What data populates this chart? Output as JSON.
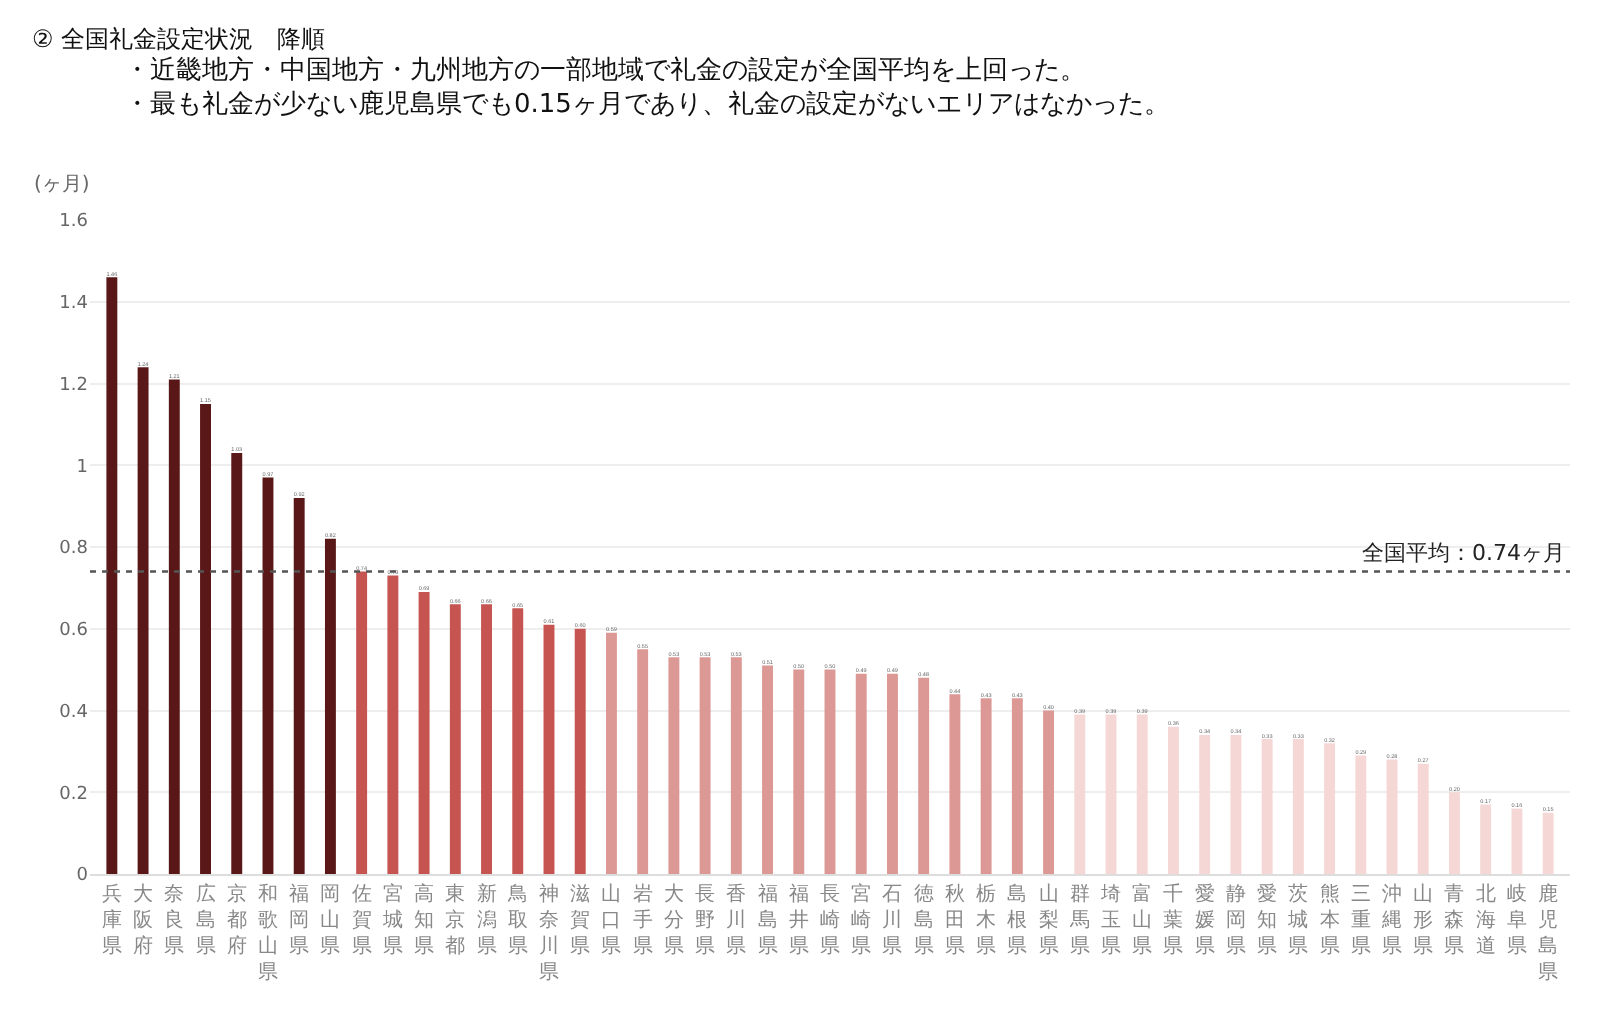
{
  "chart_data": {
    "type": "bar",
    "title": "② 全国礼金設定状況　降順",
    "subtitle": "・近畿地方・中国地方・九州地方の一部地域で礼金の設定が全国平均を上回った。",
    "annotations": [
      "・最も礼金が少ない鹿児島県でも0.15ヶ月であり、礼金の設定がないエリアはなかった。"
    ],
    "ylabel": "(ヶ月)",
    "categories": [
      "兵庫県",
      "大阪府",
      "奈良県",
      "広島県",
      "京都府",
      "和歌山県",
      "福岡県",
      "岡山県",
      "佐賀県",
      "宮城県",
      "高知県",
      "東京都",
      "新潟県",
      "鳥取県",
      "神奈川県",
      "滋賀県",
      "山口県",
      "岩手県",
      "大分県",
      "長野県",
      "香川県",
      "福島県",
      "福井県",
      "長崎県",
      "宮崎県",
      "石川県",
      "徳島県",
      "秋田県",
      "栃木県",
      "島根県",
      "山梨県",
      "群馬県",
      "埼玉県",
      "富山県",
      "千葉県",
      "愛媛県",
      "静岡県",
      "愛知県",
      "茨城県",
      "熊本県",
      "三重県",
      "沖縄県",
      "山形県",
      "青森県",
      "北海道",
      "岐阜県",
      "鹿児島県"
    ],
    "values": [
      1.46,
      1.24,
      1.21,
      1.15,
      1.03,
      0.97,
      0.92,
      0.82,
      0.74,
      0.73,
      0.69,
      0.66,
      0.66,
      0.65,
      0.61,
      0.6,
      0.59,
      0.55,
      0.53,
      0.53,
      0.53,
      0.51,
      0.5,
      0.5,
      0.49,
      0.49,
      0.48,
      0.44,
      0.43,
      0.43,
      0.4,
      0.39,
      0.39,
      0.39,
      0.36,
      0.34,
      0.34,
      0.33,
      0.33,
      0.32,
      0.29,
      0.28,
      0.27,
      0.2,
      0.17,
      0.16,
      0.15
    ],
    "colors": [
      "#5a1717",
      "#5a1717",
      "#5a1717",
      "#5a1717",
      "#5a1717",
      "#5a1717",
      "#5a1717",
      "#5a1717",
      "#c65450",
      "#c65450",
      "#c65450",
      "#c65450",
      "#c65450",
      "#c65450",
      "#c65450",
      "#c65450",
      "#dc9895",
      "#dc9895",
      "#dc9895",
      "#dc9895",
      "#dc9895",
      "#dc9895",
      "#dc9895",
      "#dc9895",
      "#dc9895",
      "#dc9895",
      "#dc9895",
      "#dc9895",
      "#dc9895",
      "#dc9895",
      "#dc9895",
      "#f5d8d6",
      "#f5d8d6",
      "#f5d8d6",
      "#f5d8d6",
      "#f5d8d6",
      "#f5d8d6",
      "#f5d8d6",
      "#f5d8d6",
      "#f5d8d6",
      "#f5d8d6",
      "#f5d8d6",
      "#f5d8d6",
      "#f5d8d6",
      "#f5d8d6",
      "#f5d8d6",
      "#f5d8d6"
    ],
    "ylim": [
      0,
      1.6
    ],
    "yticks": [
      0,
      0.2,
      0.4,
      0.6,
      0.8,
      1,
      1.2,
      1.4,
      1.6
    ],
    "ref_lines": [
      {
        "axis": "y",
        "value": 0.74,
        "label": "全国平均：0.74ヶ月",
        "color": "#555555",
        "line_style": "dotted"
      }
    ],
    "value_labels": [
      "1.46",
      "1.24",
      "1.21",
      "1.15",
      "1.03",
      "0.97",
      "0.92",
      "0.82",
      "0.74",
      "0.73",
      "0.69",
      "0.66",
      "0.66",
      "0.65",
      "0.61",
      "0.60",
      "0.59",
      "0.55",
      "0.53",
      "0.53",
      "0.53",
      "0.51",
      "0.50",
      "0.50",
      "0.49",
      "0.49",
      "0.48",
      "0.44",
      "0.43",
      "0.43",
      "0.40",
      "0.39",
      "0.39",
      "0.39",
      "0.36",
      "0.34",
      "0.34",
      "0.33",
      "0.33",
      "0.32",
      "0.29",
      "0.28",
      "0.27",
      "0.20",
      "0.17",
      "0.16",
      "0.15"
    ],
    "grid": "y",
    "legend": false
  }
}
